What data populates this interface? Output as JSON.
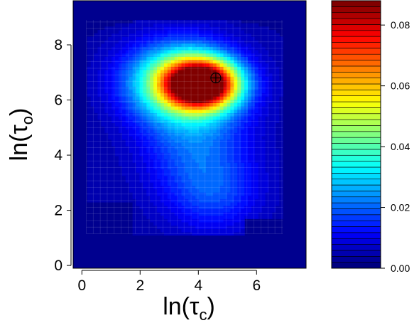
{
  "chart_data": {
    "type": "heatmap",
    "title": "",
    "xlabel": {
      "base": "ln(τ",
      "sub": "c",
      "close": ")"
    },
    "ylabel": {
      "base": "ln(τ",
      "sub": "o",
      "close": ")"
    },
    "xlim": [
      -0.3,
      7.7
    ],
    "ylim": [
      -0.1,
      9.6
    ],
    "x_ticks": [
      0,
      2,
      4,
      6
    ],
    "x_tick_labels": [
      "0",
      "2",
      "4",
      "6"
    ],
    "y_ticks": [
      0,
      2,
      4,
      6,
      8
    ],
    "y_tick_labels": [
      "0",
      "2",
      "4",
      "6",
      "8"
    ],
    "grid": false,
    "colorscale": {
      "min": 0.0,
      "max": 0.088,
      "ticks": [
        0.0,
        0.02,
        0.04,
        0.06,
        0.08
      ],
      "tick_labels": [
        "0.00",
        "0.02",
        "0.04",
        "0.06",
        "0.08"
      ],
      "levels": 45
    },
    "density_peak": {
      "x": 4.6,
      "y": 6.8
    },
    "support_region_approx": {
      "x_range": [
        0.1,
        6.9
      ],
      "y_range": [
        1.1,
        8.9
      ]
    },
    "density_summary": [
      {
        "x": 4.2,
        "y": 6.6,
        "value": 0.088
      },
      {
        "x": 3.8,
        "y": 6.7,
        "value": 0.075
      },
      {
        "x": 3.0,
        "y": 6.6,
        "value": 0.06
      },
      {
        "x": 2.2,
        "y": 6.8,
        "value": 0.045
      },
      {
        "x": 4.0,
        "y": 5.0,
        "value": 0.03
      },
      {
        "x": 4.5,
        "y": 3.6,
        "value": 0.018
      },
      {
        "x": 4.7,
        "y": 2.4,
        "value": 0.012
      },
      {
        "x": 2.8,
        "y": 1.6,
        "value": 0.006
      }
    ]
  }
}
